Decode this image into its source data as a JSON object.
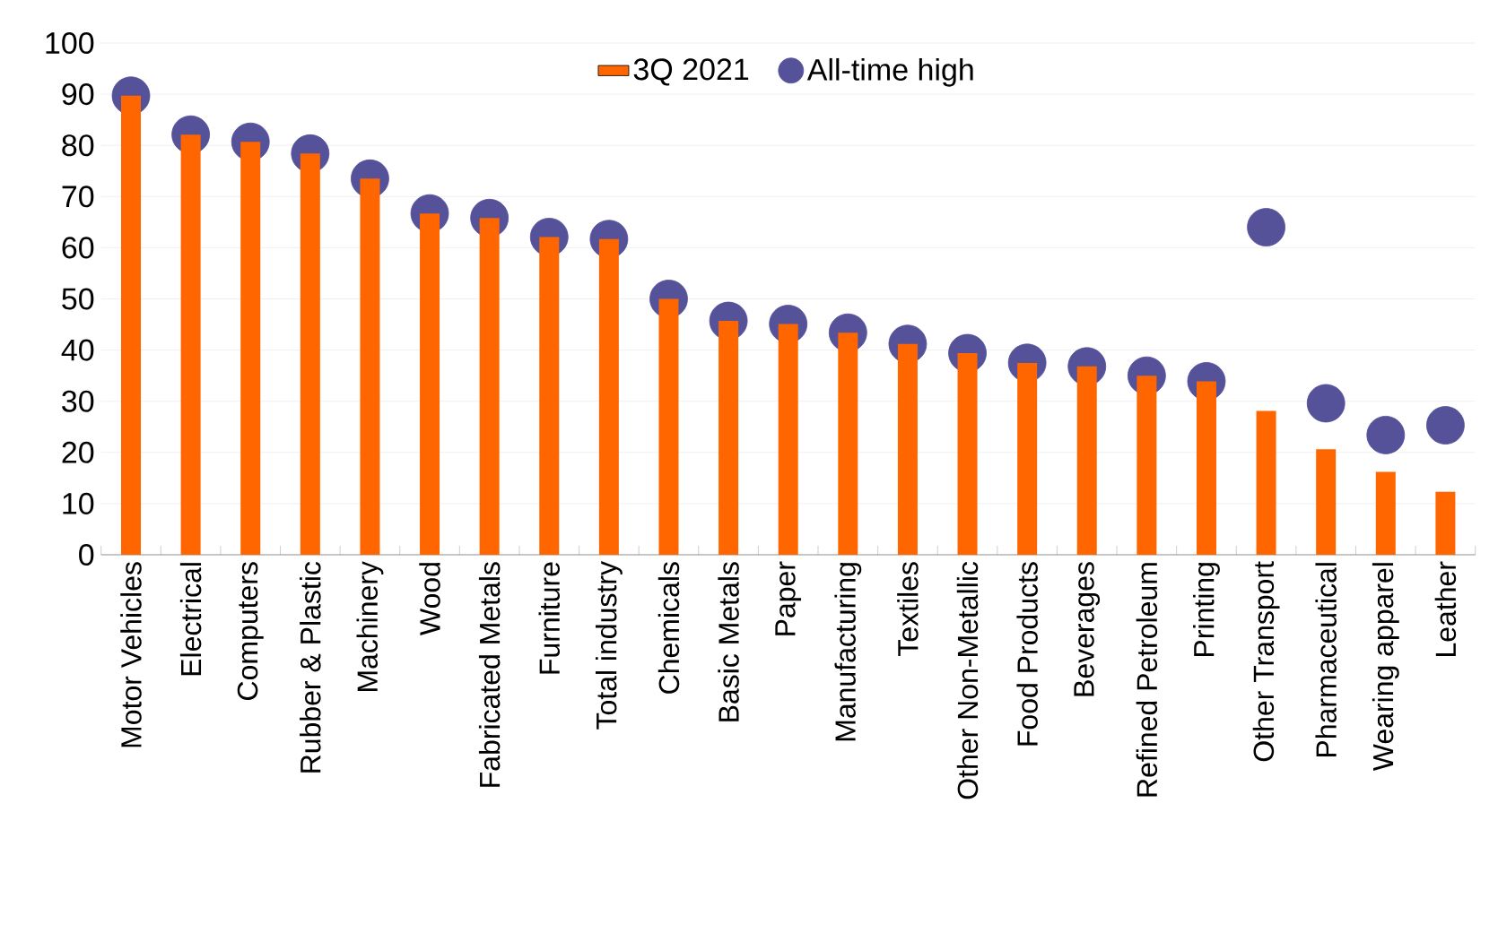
{
  "chart_data": {
    "type": "bar",
    "categories": [
      "Motor Vehicles",
      "Electrical",
      "Computers",
      "Rubber & Plastic",
      "Machinery",
      "Wood",
      "Fabricated Metals",
      "Furniture",
      "Total industry",
      "Chemicals",
      "Basic Metals",
      "Paper",
      "Manufacturing",
      "Textiles",
      "Other Non-Metallic",
      "Food Products",
      "Beverages",
      "Refined Petroleum",
      "Printing",
      "Other Transport",
      "Pharmaceutical",
      "Wearing apparel",
      "Leather"
    ],
    "series": [
      {
        "name": "3Q 2021",
        "color": "#ff6600",
        "values": [
          89.7,
          82.1,
          80.7,
          78.4,
          73.5,
          66.7,
          65.8,
          62.1,
          61.7,
          50.0,
          45.7,
          45.1,
          43.4,
          41.2,
          39.4,
          37.5,
          36.8,
          35.0,
          33.9,
          28.1,
          20.6,
          16.2,
          12.3
        ]
      },
      {
        "name": "All-time high",
        "type": "scatter",
        "color": "#55529a",
        "values": [
          89.7,
          82.1,
          80.7,
          78.4,
          73.5,
          66.7,
          65.8,
          62.1,
          61.7,
          50.0,
          45.7,
          45.1,
          43.4,
          41.2,
          39.4,
          37.5,
          36.8,
          35.0,
          33.9,
          64.0,
          29.6,
          23.4,
          25.3
        ]
      }
    ],
    "ylim": [
      0,
      100
    ],
    "yticks": [
      0,
      10,
      20,
      30,
      40,
      50,
      60,
      70,
      80,
      90,
      100
    ],
    "grid": "y",
    "legend": "top",
    "marker": "circle"
  }
}
